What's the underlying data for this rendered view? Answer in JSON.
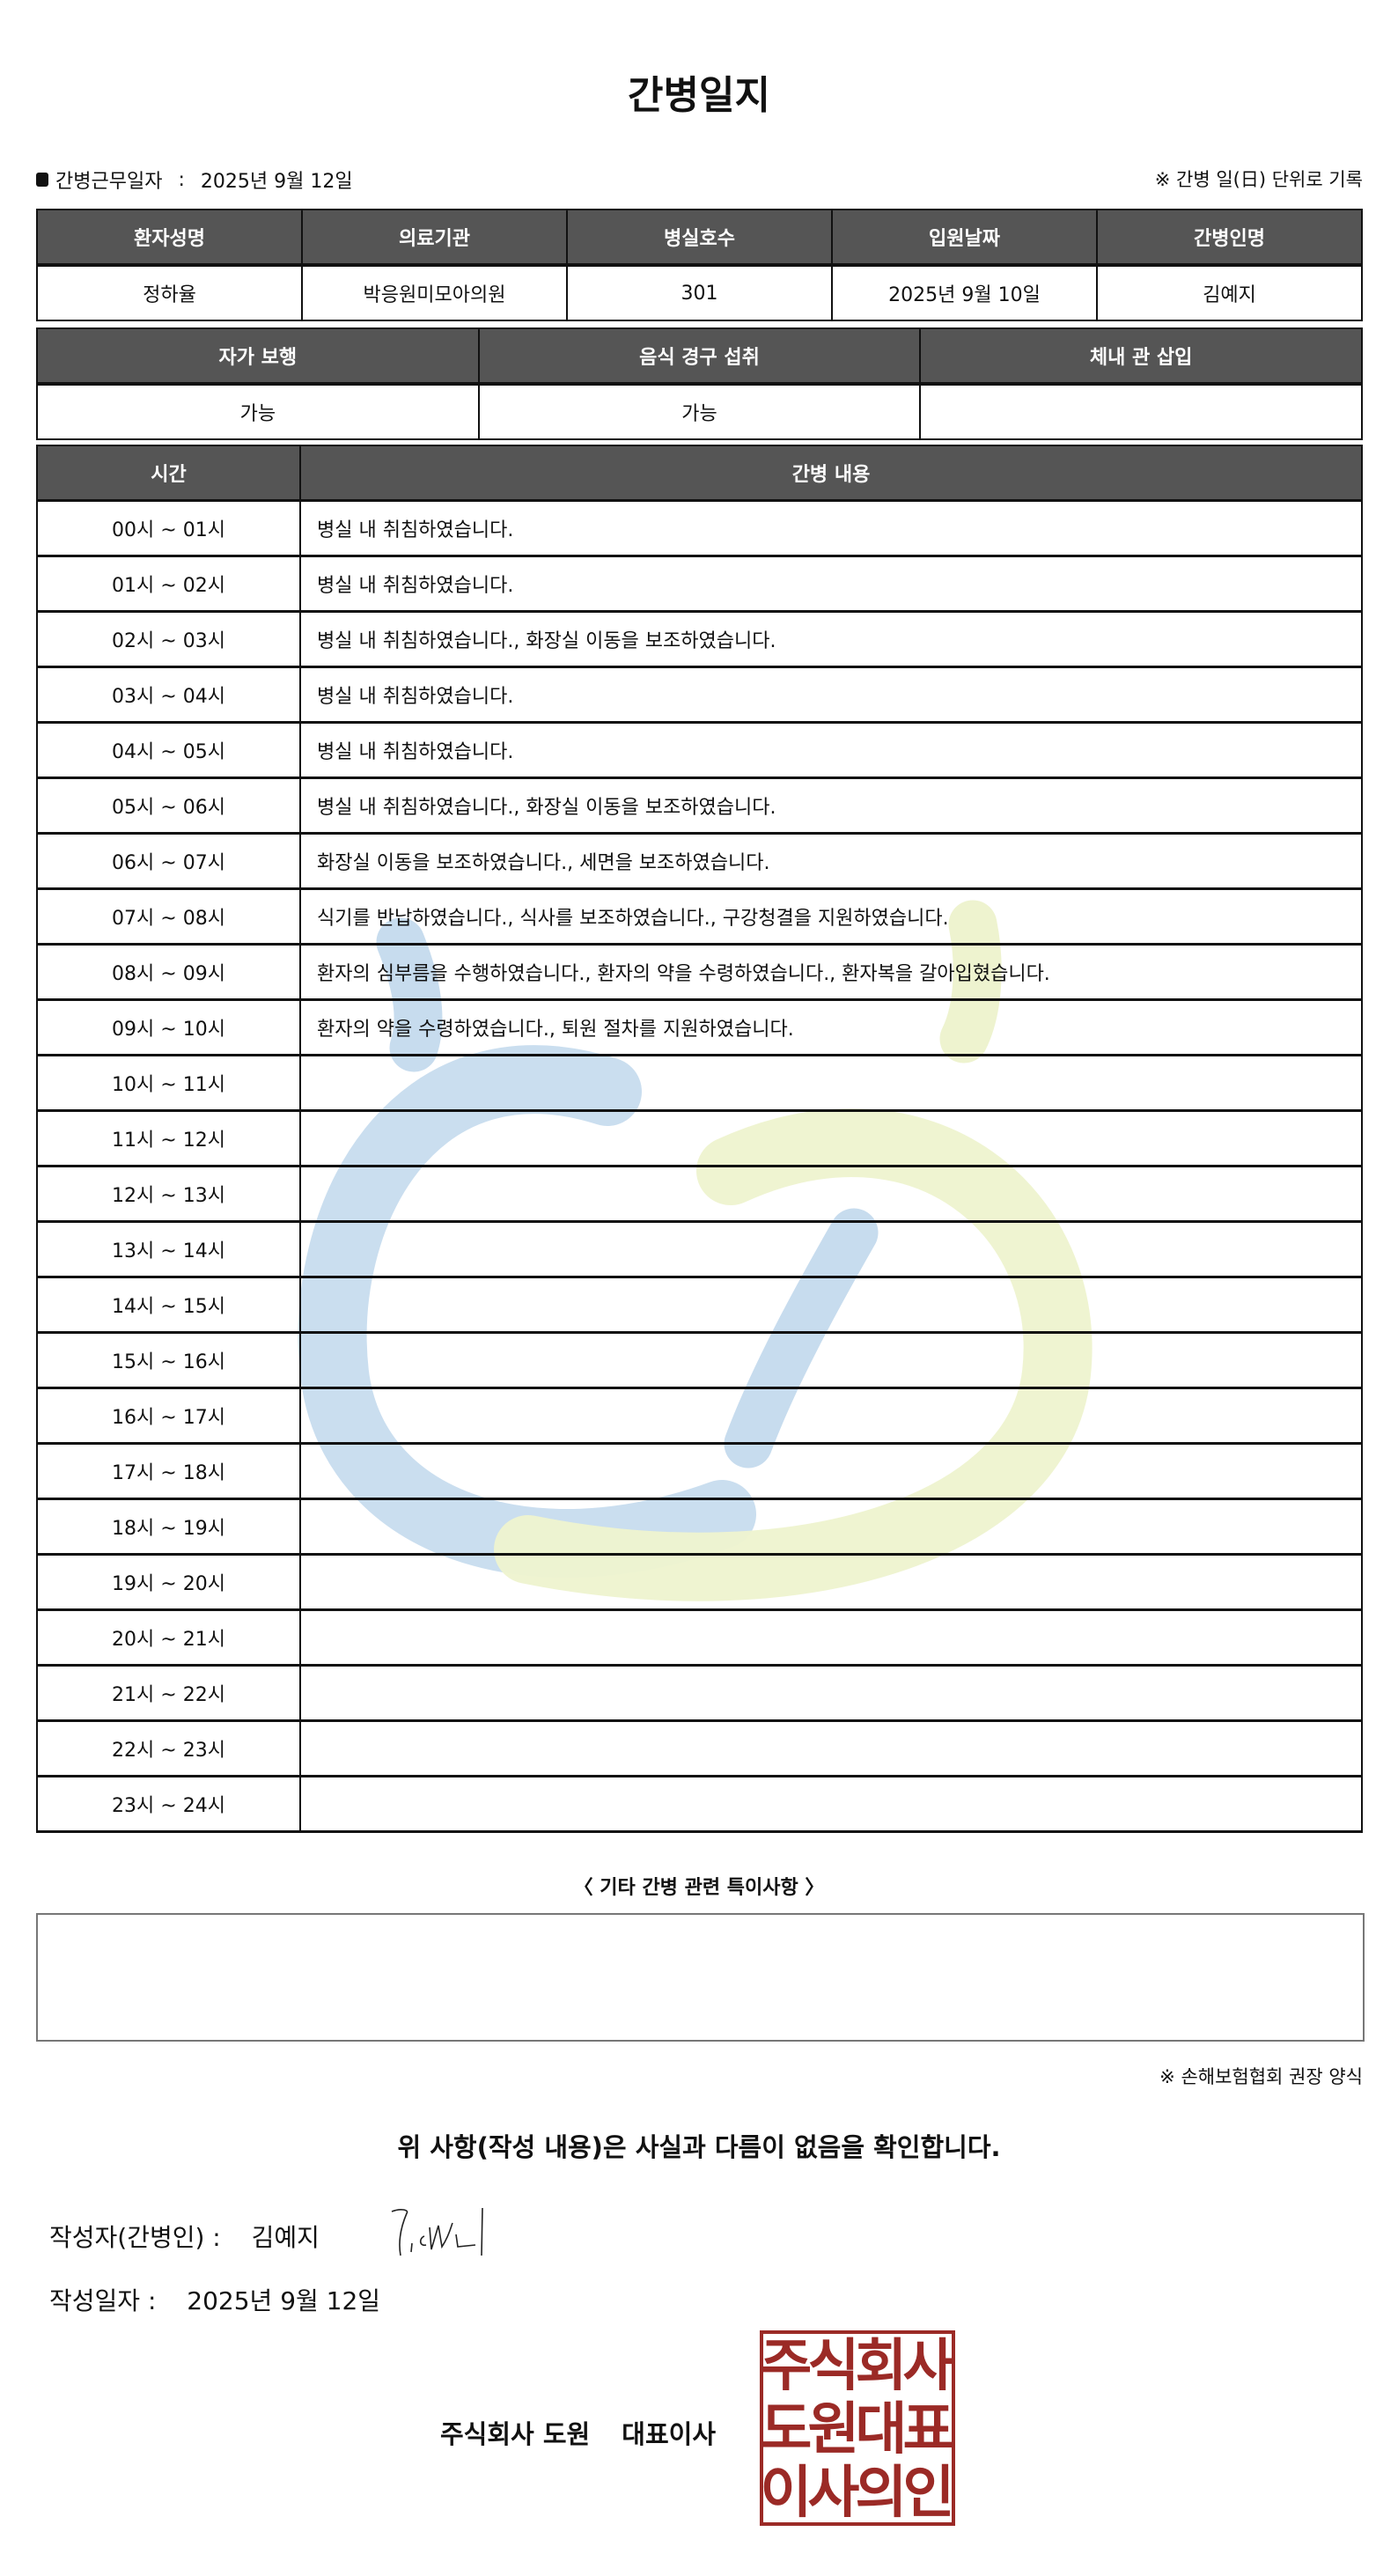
{
  "title": "간병일지",
  "work_date": {
    "label": "간병근무일자",
    "sep": ":",
    "value": "2025년 9월 12일"
  },
  "unit_note": "※ 간병 일(日) 단위로 기록",
  "info_table": {
    "headers": [
      "환자성명",
      "의료기관",
      "병실호수",
      "입원날짜",
      "간병인명"
    ],
    "values": [
      "정하율",
      "박응원미모아의원",
      "301",
      "2025년 9월 10일",
      "김예지"
    ]
  },
  "status_table": {
    "headers": [
      "자가 보행",
      "음식 경구 섭취",
      "체내 관 삽입"
    ],
    "values": [
      "가능",
      "가능",
      ""
    ]
  },
  "log_table": {
    "headers": [
      "시간",
      "간병 내용"
    ],
    "rows": [
      {
        "time": "00시 ~ 01시",
        "content": "병실 내 취침하였습니다."
      },
      {
        "time": "01시 ~ 02시",
        "content": "병실 내 취침하였습니다."
      },
      {
        "time": "02시 ~ 03시",
        "content": "병실 내 취침하였습니다., 화장실 이동을 보조하였습니다."
      },
      {
        "time": "03시 ~ 04시",
        "content": "병실 내 취침하였습니다."
      },
      {
        "time": "04시 ~ 05시",
        "content": "병실 내 취침하였습니다."
      },
      {
        "time": "05시 ~ 06시",
        "content": "병실 내 취침하였습니다., 화장실 이동을 보조하였습니다."
      },
      {
        "time": "06시 ~ 07시",
        "content": "화장실 이동을 보조하였습니다., 세면을 보조하였습니다."
      },
      {
        "time": "07시 ~ 08시",
        "content": "식기를 반납하였습니다., 식사를 보조하였습니다., 구강청결을 지원하였습니다."
      },
      {
        "time": "08시 ~ 09시",
        "content": "환자의 심부름을 수행하였습니다., 환자의 약을 수령하였습니다., 환자복을 갈아입혔습니다."
      },
      {
        "time": "09시 ~ 10시",
        "content": "환자의 약을 수령하였습니다., 퇴원 절차를 지원하였습니다."
      },
      {
        "time": "10시 ~ 11시",
        "content": ""
      },
      {
        "time": "11시 ~ 12시",
        "content": ""
      },
      {
        "time": "12시 ~ 13시",
        "content": ""
      },
      {
        "time": "13시 ~ 14시",
        "content": ""
      },
      {
        "time": "14시 ~ 15시",
        "content": ""
      },
      {
        "time": "15시 ~ 16시",
        "content": ""
      },
      {
        "time": "16시 ~ 17시",
        "content": ""
      },
      {
        "time": "17시 ~ 18시",
        "content": ""
      },
      {
        "time": "18시 ~ 19시",
        "content": ""
      },
      {
        "time": "19시 ~ 20시",
        "content": ""
      },
      {
        "time": "20시 ~ 21시",
        "content": ""
      },
      {
        "time": "21시 ~ 22시",
        "content": ""
      },
      {
        "time": "22시 ~ 23시",
        "content": ""
      },
      {
        "time": "23시 ~ 24시",
        "content": ""
      }
    ]
  },
  "notes": {
    "label": "〈 기타 간병 관련 특이사항 〉",
    "value": ""
  },
  "association_note": "※ 손해보험협회 권장 양식",
  "confirmation": "위 사항(작성 내용)은 사실과 다름이 없음을 확인합니다.",
  "writer": {
    "label": "작성자(간병인) :",
    "name": "김예지"
  },
  "written_date": {
    "label": "작성일자 :",
    "value": "2025년 9월 12일"
  },
  "company": {
    "name": "주식회사 도원",
    "title": "대표이사"
  },
  "seal": {
    "text": "주식회사도원대표이사의인",
    "color": "#9b2a26"
  },
  "colors": {
    "header_bg": "#555555",
    "watermark_blue": "#c7dcee",
    "watermark_green": "#eef3cf"
  }
}
